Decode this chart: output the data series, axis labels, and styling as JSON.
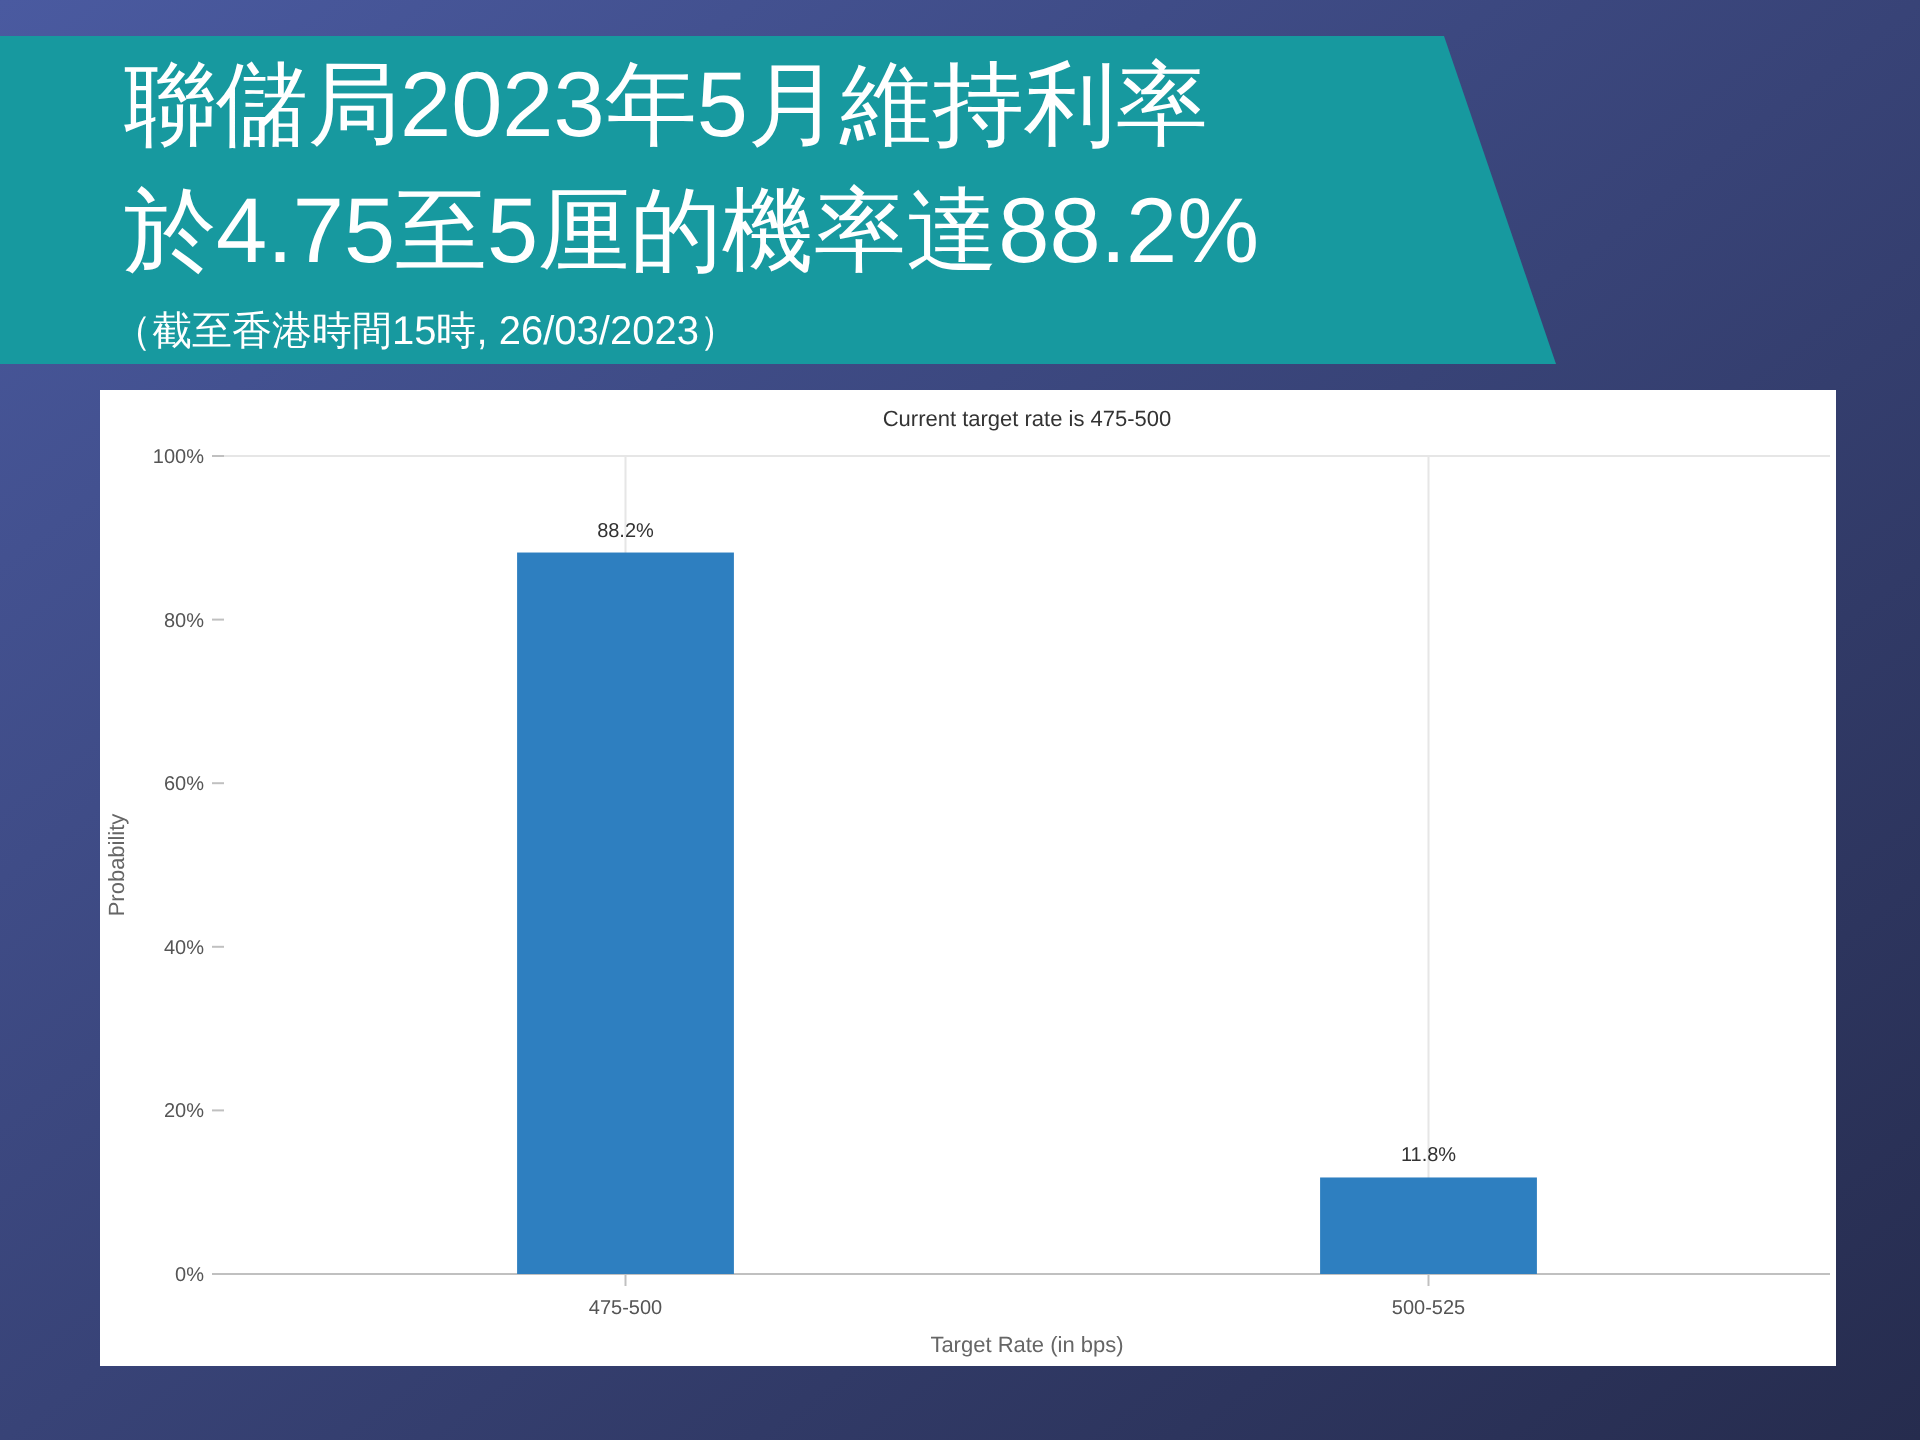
{
  "chart_data": {
    "type": "bar",
    "title": "聯儲局2023年5月維持利率",
    "subtitle": "於4.75至5厘的機率達88.2%",
    "annotations": [
      "（截至香港時間15時, 26/03/2023）",
      "Current target rate is 475-500"
    ],
    "xlabel": "Target Rate (in bps)",
    "ylabel": "Probability",
    "categories": [
      "475-500",
      "500-525"
    ],
    "values": [
      88.2,
      11.8
    ],
    "value_labels": [
      "88.2%",
      "11.8%"
    ],
    "color": "#2e7fc0",
    "ylim": [
      0,
      100
    ],
    "yticks": [
      {
        "value": 0,
        "label": "0%"
      },
      {
        "value": 20,
        "label": "20%"
      },
      {
        "value": 40,
        "label": "40%"
      },
      {
        "value": 60,
        "label": "60%"
      },
      {
        "value": 80,
        "label": "80%"
      },
      {
        "value": 100,
        "label": "100%"
      }
    ],
    "grid": "x"
  }
}
